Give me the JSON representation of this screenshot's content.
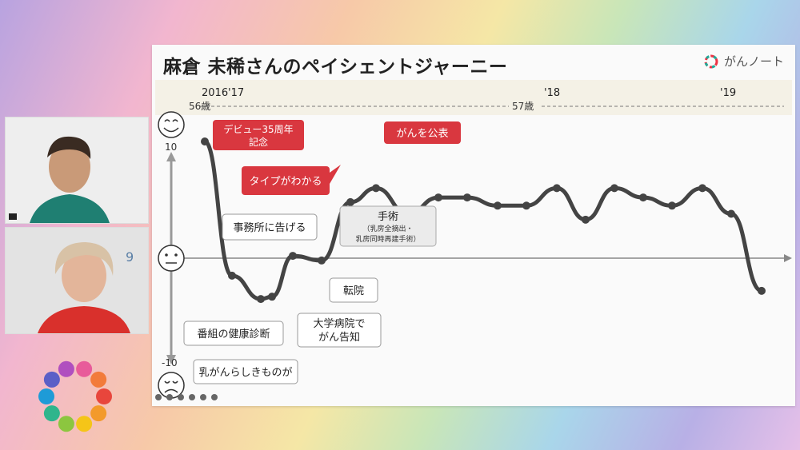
{
  "slide": {
    "title": "麻倉 未稀さんのペイシェントジャーニー",
    "brand": "がんノート"
  },
  "chart_data": {
    "type": "line",
    "title": "麻倉 未稀さんのペイシェントジャーニー",
    "y_scale_labels": {
      "top": "10",
      "bottom": "-10"
    },
    "year_labels": [
      "2016",
      "'17",
      "'18",
      "'19"
    ],
    "age_labels": [
      "56歳",
      "57歳"
    ],
    "ylim": [
      -10,
      10
    ],
    "series": [
      {
        "values": [
          10,
          -1.5,
          -3.5,
          -3.3,
          0.2,
          -0.2,
          4.8,
          6,
          3.8,
          5.2,
          5.2,
          4.5,
          4.5,
          6,
          3.3,
          6,
          5.2,
          4.5,
          6,
          3.8,
          -2.8
        ]
      }
    ],
    "annotations": [
      {
        "text": "デビュー35周年\n記念",
        "style": "red"
      },
      {
        "text": "がんを公表",
        "style": "red"
      },
      {
        "text": "タイプがわかる",
        "style": "red"
      },
      {
        "text": "手術",
        "sub": "（乳房全摘出・\n乳房同時再建手術）",
        "style": "gray"
      },
      {
        "text": "事務所に告げる",
        "style": "white"
      },
      {
        "text": "転院",
        "style": "white"
      },
      {
        "text": "大学病院で\nがん告知",
        "style": "white"
      },
      {
        "text": "番組の健康診断",
        "style": "white"
      },
      {
        "text": "乳がんらしきものが",
        "style": "white"
      }
    ]
  }
}
